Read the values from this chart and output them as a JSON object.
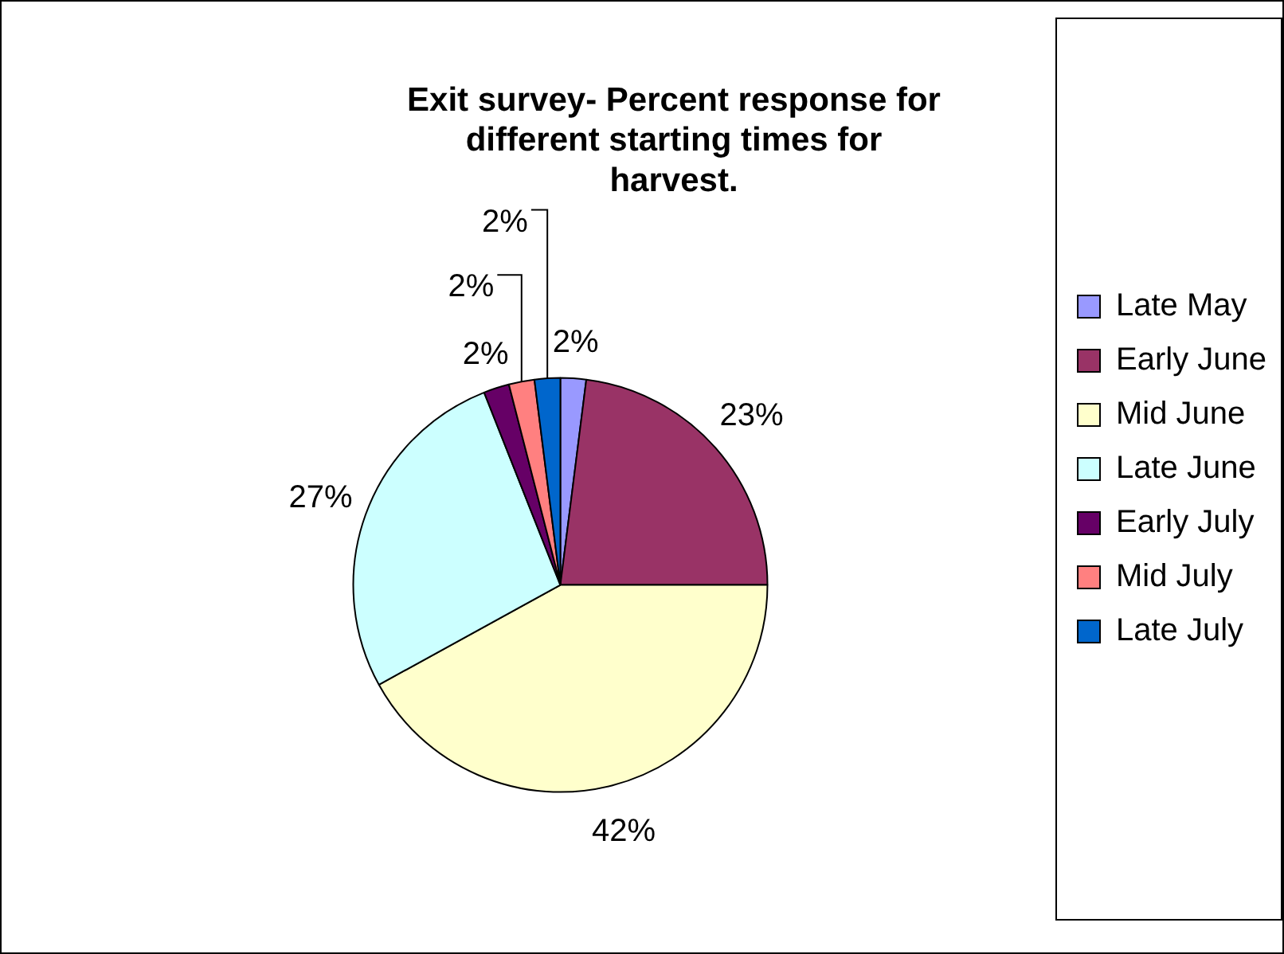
{
  "chart_data": {
    "type": "pie",
    "title": "Exit survey- Percent response for different starting times for harvest.",
    "categories": [
      "Late May",
      "Early June",
      "Mid June",
      "Late June",
      "Early July",
      "Mid July",
      "Late July"
    ],
    "values": [
      2,
      23,
      42,
      27,
      2,
      2,
      2
    ],
    "colors": [
      "#9999ff",
      "#993366",
      "#ffffcc",
      "#ccffff",
      "#660066",
      "#ff8080",
      "#0066cc"
    ],
    "value_labels": [
      "2%",
      "23%",
      "42%",
      "27%",
      "2%",
      "2%",
      "2%"
    ],
    "legend": "right"
  }
}
